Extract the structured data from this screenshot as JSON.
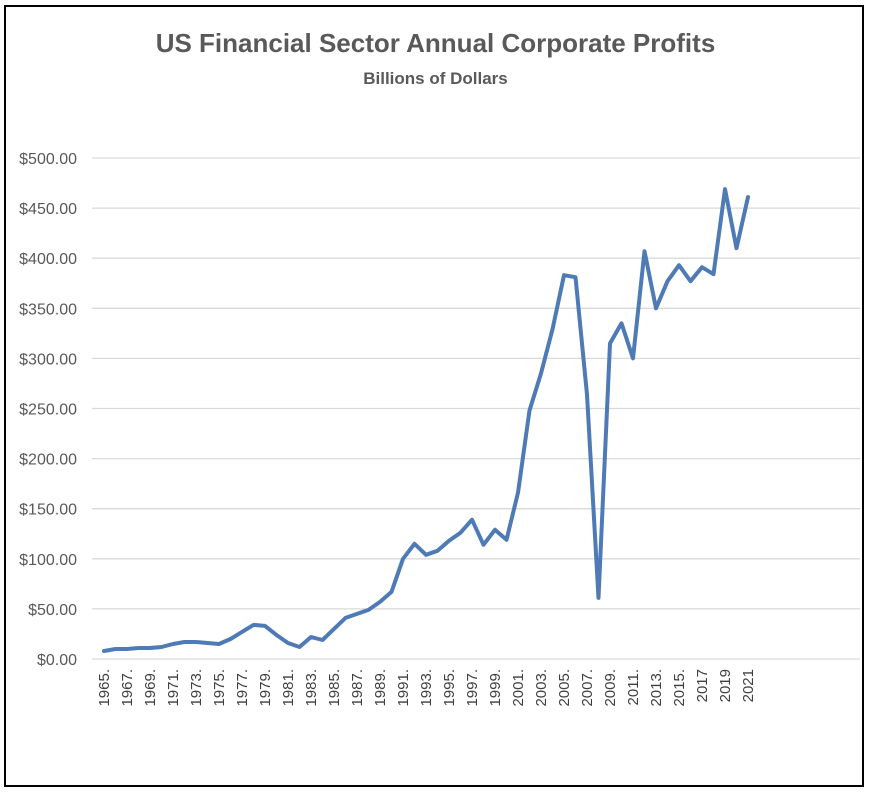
{
  "chart_data": {
    "type": "line",
    "title": "US Financial Sector Annual Corporate Profits",
    "subtitle": "Billions of Dollars",
    "xlabel": "",
    "ylabel": "",
    "ylim": [
      0,
      500
    ],
    "y_ticks": [
      "$0.00",
      "$50.00",
      "$100.00",
      "$150.00",
      "$200.00",
      "$250.00",
      "$300.00",
      "$350.00",
      "$400.00",
      "$450.00",
      "$500.00"
    ],
    "x_tick_labels": [
      "1965.",
      "1967.",
      "1969.",
      "1971.",
      "1973.",
      "1975.",
      "1977.",
      "1979.",
      "1981.",
      "1983.",
      "1985.",
      "1987.",
      "1989.",
      "1991.",
      "1993.",
      "1995.",
      "1997.",
      "1999.",
      "2001.",
      "2003.",
      "2005.",
      "2007.",
      "2009.",
      "2011.",
      "2013.",
      "2015.",
      "2017",
      "2019",
      "2021"
    ],
    "grid": true,
    "legend": "none",
    "line_color": "#4e7ab5",
    "series": [
      {
        "x": [
          1965,
          1966,
          1967,
          1968,
          1969,
          1970,
          1971,
          1972,
          1973,
          1974,
          1975,
          1976,
          1977,
          1978,
          1979,
          1980,
          1981,
          1982,
          1983,
          1984,
          1985,
          1986,
          1987,
          1988,
          1989,
          1990,
          1991,
          1992,
          1993,
          1994,
          1995,
          1996,
          1997,
          1998,
          1999,
          2000,
          2001,
          2002,
          2003,
          2004,
          2005,
          2006,
          2007,
          2008,
          2009,
          2010,
          2011,
          2012,
          2013,
          2014,
          2015,
          2016,
          2017,
          2018,
          2019,
          2020,
          2021
        ],
        "values": [
          8,
          10,
          10,
          11,
          11,
          12,
          15,
          17,
          17,
          16,
          15,
          20,
          27,
          34,
          33,
          24,
          16,
          12,
          22,
          19,
          30,
          41,
          45,
          49,
          57,
          67,
          100,
          115,
          104,
          108,
          118,
          126,
          139,
          114,
          129,
          119,
          166,
          248,
          285,
          329,
          383,
          381,
          264,
          61,
          315,
          335,
          300,
          407,
          350,
          377,
          393,
          377,
          391,
          384,
          469,
          410,
          461
        ]
      }
    ]
  }
}
